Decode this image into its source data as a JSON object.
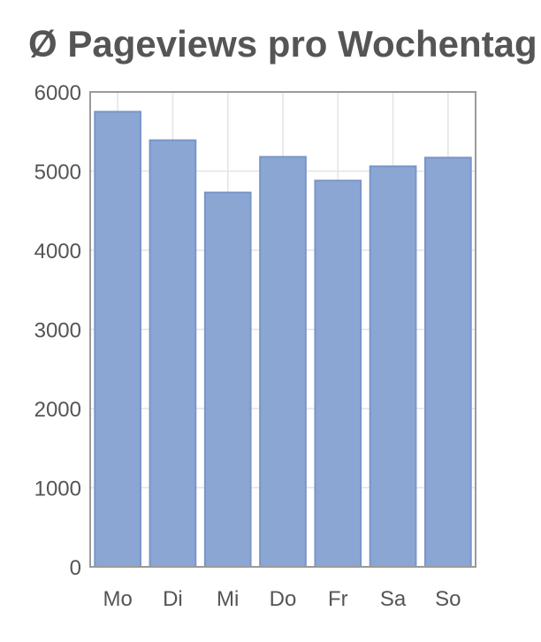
{
  "chart_data": {
    "type": "bar",
    "title": "Ø Pageviews pro Wochentag",
    "categories": [
      "Mo",
      "Di",
      "Mi",
      "Do",
      "Fr",
      "Sa",
      "So"
    ],
    "values": [
      5750,
      5390,
      4730,
      5180,
      4880,
      5060,
      5170
    ],
    "ylim": [
      0,
      6000
    ],
    "yticks": [
      "0",
      "1000",
      "2000",
      "3000",
      "4000",
      "5000",
      "6000"
    ],
    "xlabel": "",
    "ylabel": "",
    "grid": true,
    "bar_color": "#8ca6d4",
    "bar_stroke": "#7a95c9",
    "grid_color": "#e4e4e4",
    "axis_color": "#9a9a9a",
    "text_color": "#555555"
  }
}
